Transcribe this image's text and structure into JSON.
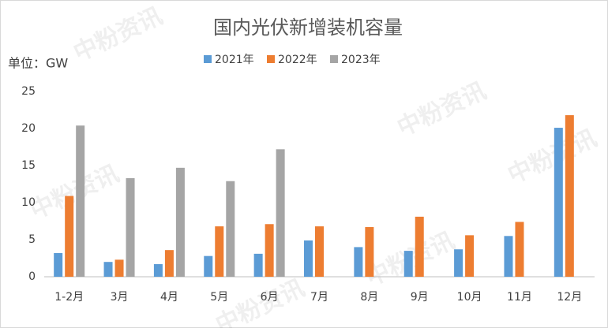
{
  "chart_data": {
    "type": "bar",
    "title": "国内光伏新增装机容量",
    "y_unit": "单位：GW",
    "watermark": "中粉资讯",
    "categories": [
      "1-2月",
      "3月",
      "4月",
      "5月",
      "6月",
      "7月",
      "8月",
      "9月",
      "10月",
      "11月",
      "12月"
    ],
    "series": [
      {
        "name": "2021年",
        "color": "#5b9bd5",
        "values": [
          3.2,
          2.0,
          1.7,
          2.8,
          3.1,
          4.9,
          4.0,
          3.5,
          3.7,
          5.5,
          20.1
        ]
      },
      {
        "name": "2022年",
        "color": "#ed7d31",
        "values": [
          10.9,
          2.3,
          3.6,
          6.8,
          7.1,
          6.8,
          6.7,
          8.1,
          5.6,
          7.4,
          21.8
        ]
      },
      {
        "name": "2023年",
        "color": "#a5a5a5",
        "values": [
          20.4,
          13.3,
          14.7,
          12.9,
          17.2,
          null,
          null,
          null,
          null,
          null,
          null
        ]
      }
    ],
    "ylim": [
      0,
      25
    ],
    "yticks": [
      0,
      5,
      10,
      15,
      20,
      25
    ],
    "grid": false,
    "legend": "top"
  }
}
